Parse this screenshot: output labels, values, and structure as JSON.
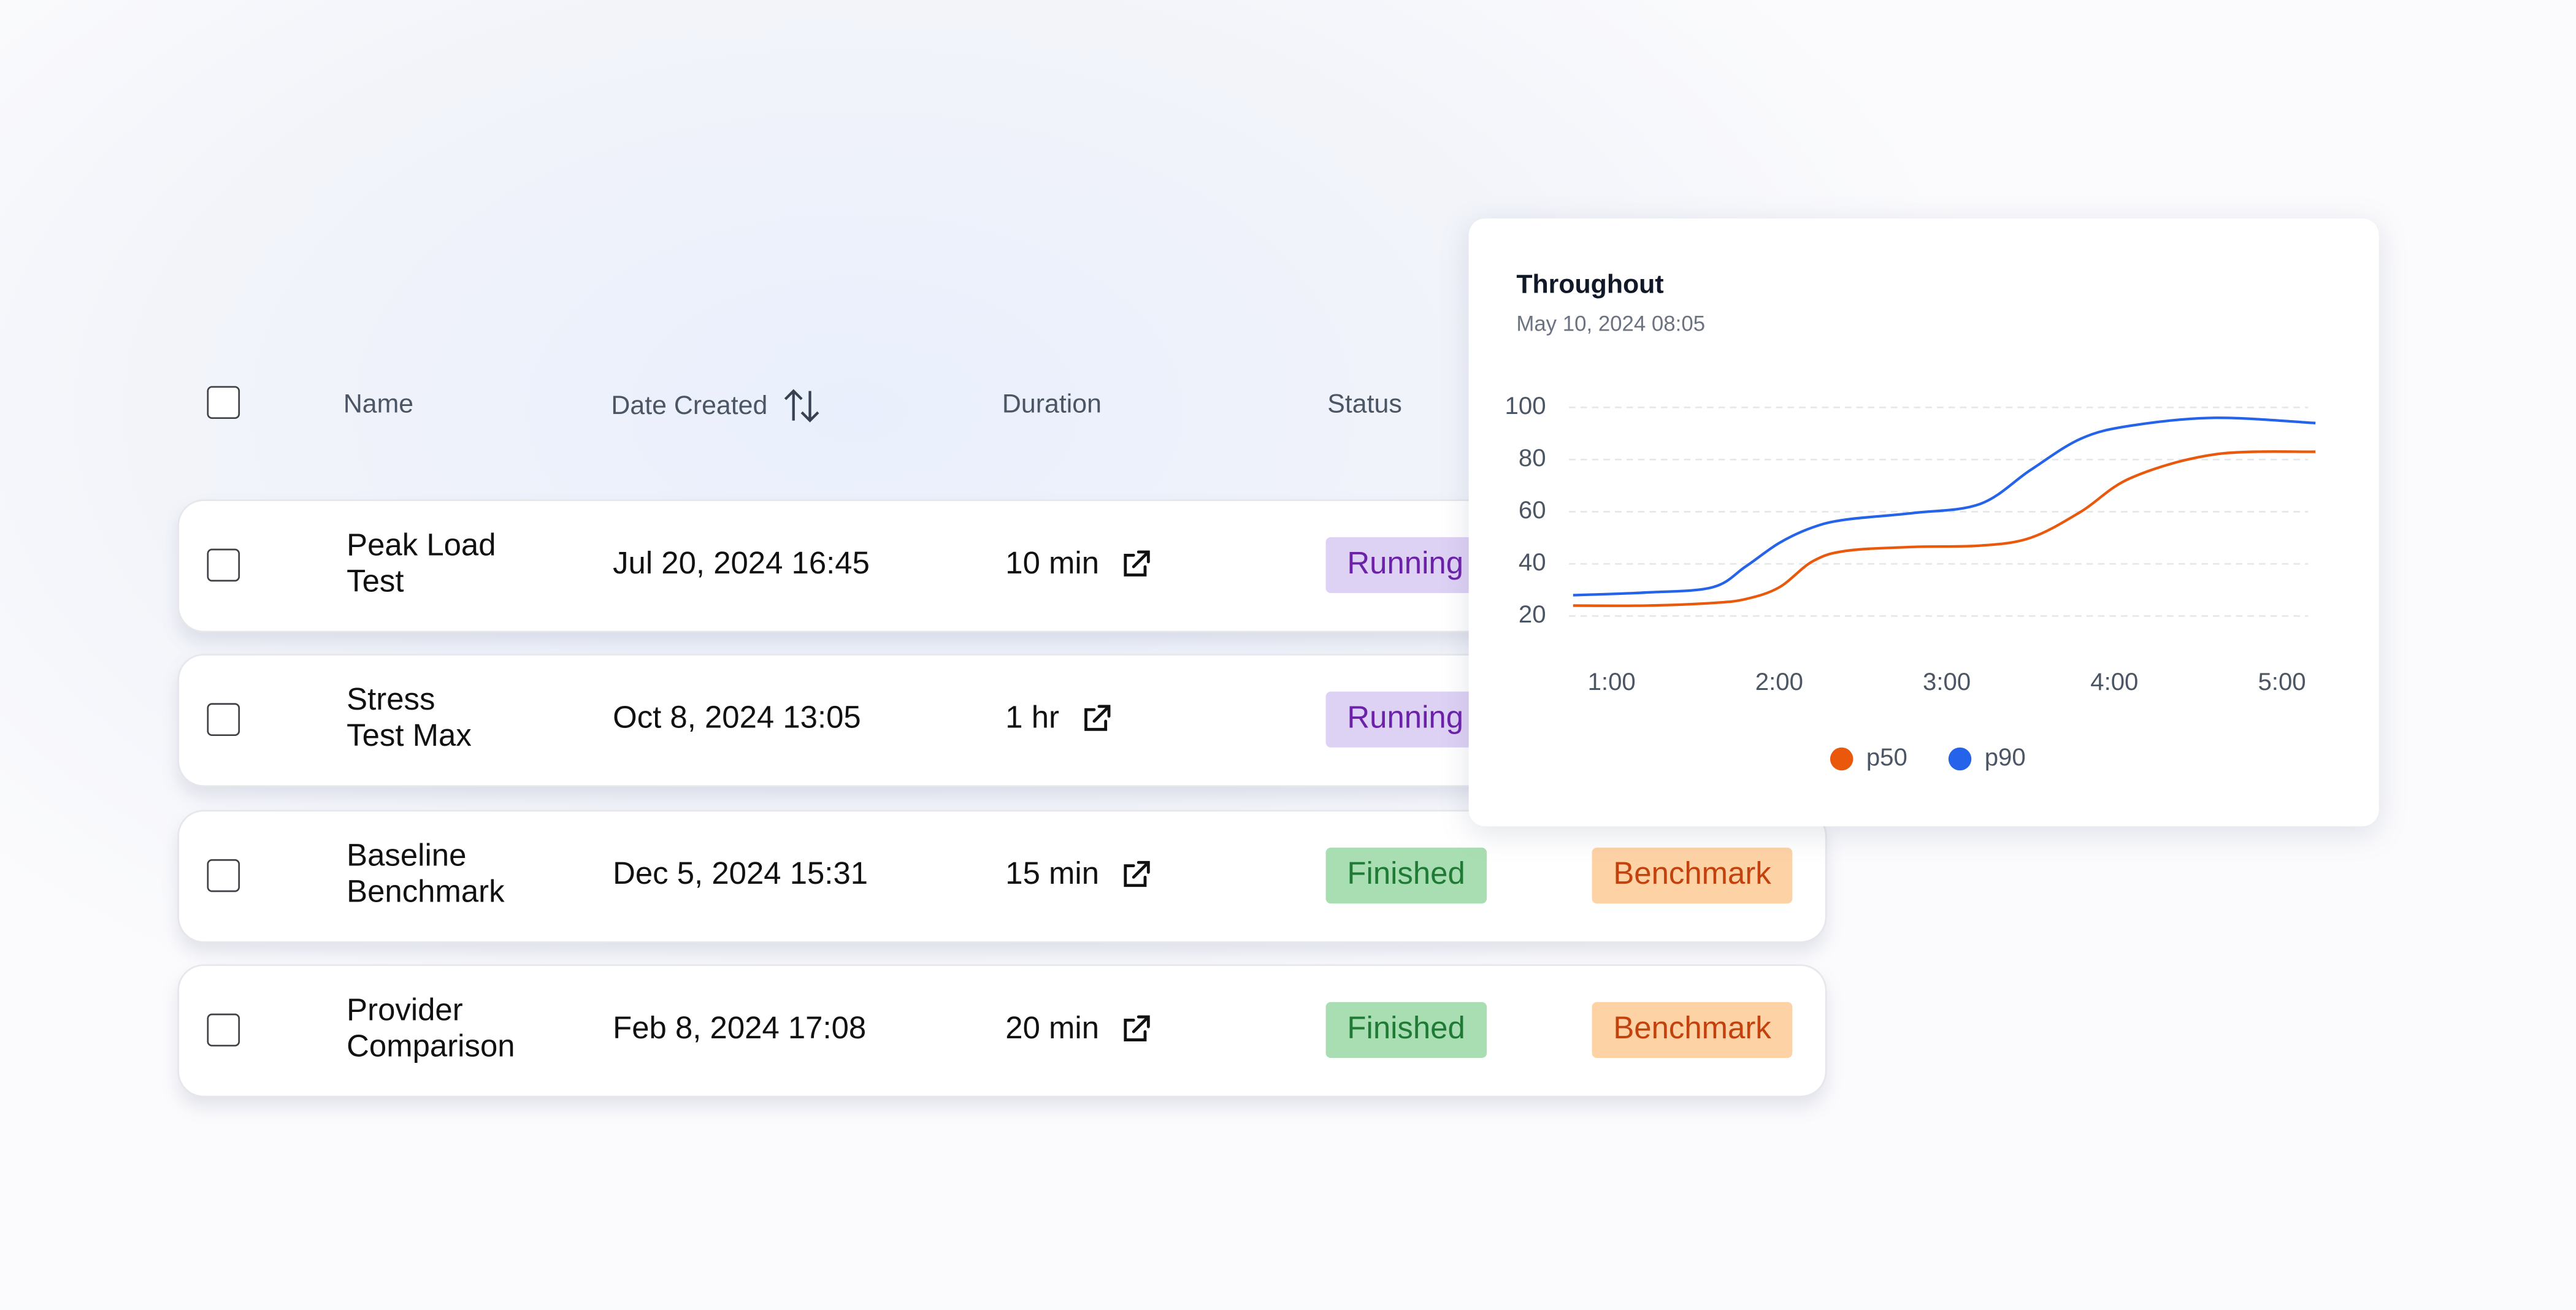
{
  "table": {
    "columns": [
      "Name",
      "Date Created",
      "Duration",
      "Status"
    ],
    "rows": [
      {
        "name": [
          "Peak Load",
          "Test"
        ],
        "date": "Jul 20, 2024 16:45",
        "duration": "10 min",
        "status": {
          "text": "Running",
          "color": "#6b21a8",
          "background": "#ddd1f4"
        }
      },
      {
        "name": [
          "Stress",
          "Test Max"
        ],
        "date": "Oct 8, 2024 13:05",
        "duration": "1 hr",
        "status": {
          "text": "Running",
          "color": "#6b21a8",
          "background": "#ddd1f4"
        }
      },
      {
        "name": [
          "Baseline",
          "Benchmark"
        ],
        "date": "Dec 5, 2024 15:31",
        "duration": "15 min",
        "status": {
          "text": "Finished",
          "color": "#1f7a36",
          "background": "#a9deb2"
        },
        "tag": {
          "text": "Benchmark",
          "color": "#c2410c",
          "background": "#fdd2a5"
        }
      },
      {
        "name": [
          "Provider",
          "Comparison"
        ],
        "date": "Feb 8, 2024 17:08",
        "duration": "20 min",
        "status": {
          "text": "Finished",
          "color": "#1f7a36",
          "background": "#a9deb2"
        },
        "tag": {
          "text": "Benchmark",
          "color": "#c2410c",
          "background": "#fdd2a5"
        }
      }
    ]
  },
  "chart_data": {
    "type": "line",
    "title": "Throughout",
    "subtitle": "May 10, 2024 08:05",
    "x": [
      0.77,
      1.2,
      1.6,
      1.8,
      2.0,
      2.2,
      2.4,
      2.8,
      3.2,
      3.5,
      3.8,
      4.1,
      4.6,
      5.2
    ],
    "series": [
      {
        "name": "p50",
        "color": "#ea580c",
        "values": [
          24,
          24,
          25,
          26.5,
          31,
          41,
          45,
          46.5,
          47,
          50,
          60,
          73,
          82,
          83
        ]
      },
      {
        "name": "p90",
        "color": "#2563eb",
        "values": [
          28,
          29,
          31,
          39,
          48,
          54,
          57,
          59.5,
          63,
          76,
          88,
          93,
          96,
          94
        ]
      }
    ],
    "xlim": [
      0.75,
      5.25
    ],
    "xticks": [
      {
        "value": 1,
        "label": "1:00"
      },
      {
        "value": 2,
        "label": "2:00"
      },
      {
        "value": 3,
        "label": "3:00"
      },
      {
        "value": 4,
        "label": "4:00"
      },
      {
        "value": 5,
        "label": "5:00"
      }
    ],
    "ylim": [
      20,
      100
    ],
    "yticks": [
      20,
      40,
      60,
      80,
      100
    ],
    "grid": true,
    "legend": "bottom"
  }
}
